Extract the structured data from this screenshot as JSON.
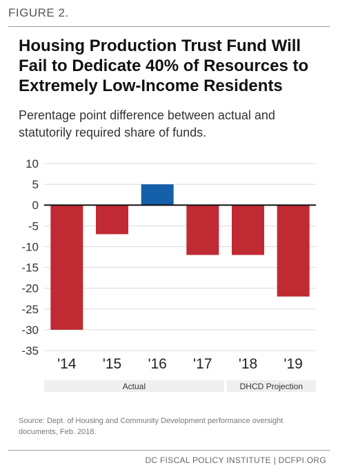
{
  "figure_label": "FIGURE 2.",
  "title": "Housing Production Trust Fund Will Fail to Dedicate 40% of Resources to Extremely Low-Income Residents",
  "subtitle": "Perentage point difference between actual and statutorily required share of funds.",
  "source": "Source: Dept. of Housing and Community Development performance oversight documents, Feb. 2018.",
  "footer": "DC FISCAL POLICY INSTITUTE | DCFPI.ORG",
  "colors": {
    "negative": "#BF2A33",
    "positive": "#1560A8",
    "group_bg": "#EFEFEF",
    "grid": "#d9d9d9"
  },
  "chart_data": {
    "type": "bar",
    "categories": [
      "'14",
      "'15",
      "'16",
      "'17",
      "'18",
      "'19"
    ],
    "values": [
      -30,
      -7,
      5,
      -12,
      -12,
      -22
    ],
    "ylim": [
      -35,
      10
    ],
    "yticks": [
      10,
      5,
      0,
      -5,
      -10,
      -15,
      -20,
      -25,
      -30,
      -35
    ],
    "grid": true,
    "groups": [
      {
        "label": "Actual",
        "start": 0,
        "end": 3
      },
      {
        "label": "DHCD Projection",
        "start": 4,
        "end": 5
      }
    ]
  }
}
